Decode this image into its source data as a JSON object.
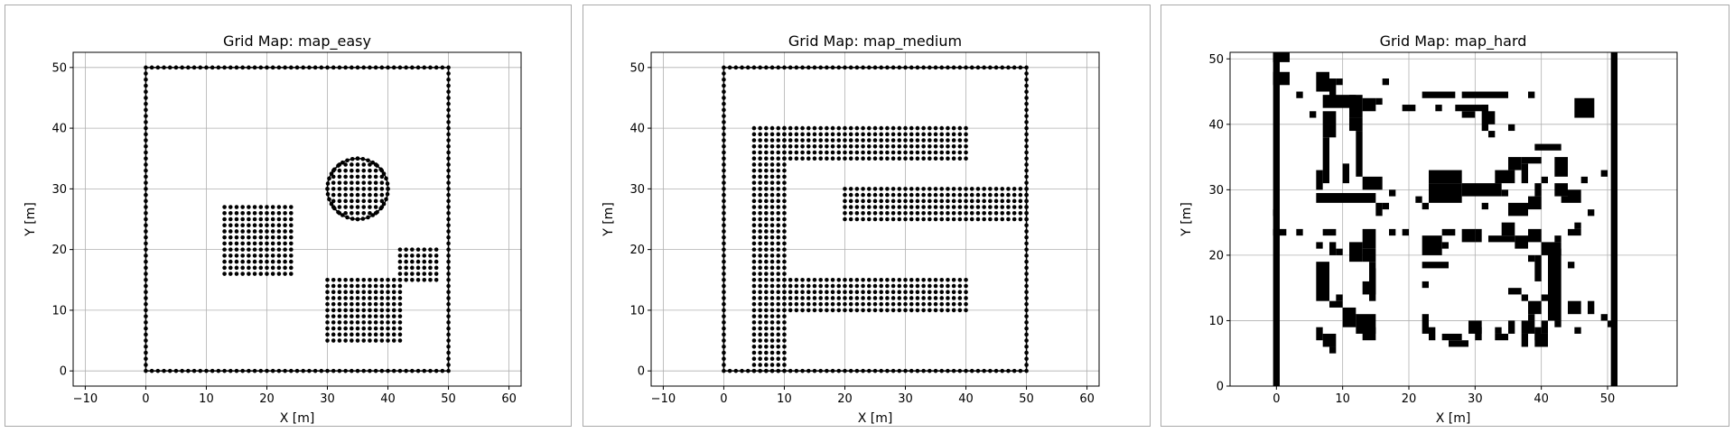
{
  "chart_data": [
    {
      "type": "scatter",
      "title": "Grid Map: map_easy",
      "xlabel": "X [m]",
      "ylabel": "Y [m]",
      "xlim": [
        -12,
        62
      ],
      "ylim": [
        -2.5,
        52.5
      ],
      "xticks": [
        -10,
        0,
        10,
        20,
        30,
        40,
        50,
        60
      ],
      "yticks": [
        0,
        10,
        20,
        30,
        40,
        50
      ],
      "grid": true,
      "marker_color": "#000000",
      "obstacles": [
        {
          "kind": "rect_outline",
          "x0": 0,
          "x1": 50,
          "y0": 0,
          "y1": 50
        },
        {
          "kind": "rect_filled",
          "x0": 13,
          "x1": 24,
          "y0": 16,
          "y1": 27
        },
        {
          "kind": "rect_filled",
          "x0": 30,
          "x1": 42,
          "y0": 5,
          "y1": 15
        },
        {
          "kind": "rect_filled",
          "x0": 42,
          "x1": 48,
          "y0": 15,
          "y1": 20
        },
        {
          "kind": "circle_filled",
          "cx": 35,
          "cy": 30,
          "r": 5
        }
      ]
    },
    {
      "type": "scatter",
      "title": "Grid Map: map_medium",
      "xlabel": "X [m]",
      "ylabel": "Y [m]",
      "xlim": [
        -12,
        62
      ],
      "ylim": [
        -2.5,
        52.5
      ],
      "xticks": [
        -10,
        0,
        10,
        20,
        30,
        40,
        50,
        60
      ],
      "yticks": [
        0,
        10,
        20,
        30,
        40,
        50
      ],
      "grid": true,
      "marker_color": "#000000",
      "obstacles": [
        {
          "kind": "rect_outline",
          "x0": 0,
          "x1": 50,
          "y0": 0,
          "y1": 50
        },
        {
          "kind": "rect_filled",
          "x0": 5,
          "x1": 10,
          "y0": 0,
          "y1": 40
        },
        {
          "kind": "rect_filled",
          "x0": 10,
          "x1": 40,
          "y0": 35,
          "y1": 40
        },
        {
          "kind": "rect_filled",
          "x0": 10,
          "x1": 40,
          "y0": 10,
          "y1": 15
        },
        {
          "kind": "rect_filled",
          "x0": 20,
          "x1": 50,
          "y0": 25,
          "y1": 30
        }
      ]
    },
    {
      "type": "heatmap",
      "title": "Grid Map: map_hard",
      "xlabel": "X [m]",
      "ylabel": "Y [m]",
      "xlim": [
        -7,
        60.5
      ],
      "ylim": [
        0,
        51
      ],
      "xticks": [
        0,
        10,
        20,
        30,
        40,
        50
      ],
      "yticks": [
        0,
        10,
        20,
        30,
        40,
        50
      ],
      "grid": true,
      "fill_color": "#000000",
      "cells": [
        [
          -0.5,
          0.5,
          -0.5,
          51
        ],
        [
          50.5,
          51.5,
          -0.5,
          51
        ],
        [
          -0.5,
          2,
          49.5,
          51
        ],
        [
          -0.5,
          2,
          46,
          48
        ],
        [
          6,
          8,
          45,
          48
        ],
        [
          8,
          9,
          44,
          47
        ],
        [
          9,
          10,
          46,
          46
        ],
        [
          7,
          12,
          42.5,
          44.5
        ],
        [
          11,
          13,
          41,
          44.5
        ],
        [
          13,
          15,
          42,
          44
        ],
        [
          7,
          9,
          38,
          42
        ],
        [
          7,
          8,
          31,
          38
        ],
        [
          11,
          13,
          39,
          41
        ],
        [
          12,
          13,
          32,
          39
        ],
        [
          10,
          11,
          31,
          34
        ],
        [
          6,
          7,
          30,
          33
        ],
        [
          3,
          4,
          44,
          45
        ],
        [
          5,
          6,
          41,
          42
        ],
        [
          6,
          15,
          28,
          29.5
        ],
        [
          13,
          16,
          30,
          32
        ],
        [
          15,
          16,
          26,
          28
        ],
        [
          16,
          17,
          27,
          28
        ],
        [
          16,
          17,
          46,
          47
        ],
        [
          15,
          16,
          43,
          44
        ],
        [
          17,
          18,
          29,
          30
        ],
        [
          21,
          22,
          28,
          29
        ],
        [
          22,
          23,
          27,
          28
        ],
        [
          23,
          28,
          31,
          33
        ],
        [
          23,
          28,
          28,
          31
        ],
        [
          26,
          27,
          44,
          45
        ],
        [
          22,
          26,
          44,
          45
        ],
        [
          19,
          21,
          42,
          43
        ],
        [
          28,
          35,
          44,
          45
        ],
        [
          31,
          32,
          39,
          43
        ],
        [
          32,
          33,
          40,
          42
        ],
        [
          24,
          25,
          42,
          43
        ],
        [
          27,
          32,
          42,
          43
        ],
        [
          28,
          30,
          41,
          42
        ],
        [
          32,
          33,
          38,
          39
        ],
        [
          35,
          36,
          39,
          40
        ],
        [
          38,
          39,
          44,
          45
        ],
        [
          33,
          36,
          31,
          33
        ],
        [
          28,
          34,
          29,
          31
        ],
        [
          31,
          32,
          27,
          28
        ],
        [
          34,
          35,
          29,
          30
        ],
        [
          35,
          37,
          33,
          35
        ],
        [
          37,
          40,
          34,
          35
        ],
        [
          37,
          38,
          31,
          34
        ],
        [
          39,
          43,
          36,
          37
        ],
        [
          42,
          44,
          32,
          35
        ],
        [
          40,
          41,
          31,
          32
        ],
        [
          43,
          44,
          33,
          34
        ],
        [
          45,
          48,
          41,
          44
        ],
        [
          46,
          47,
          31,
          32
        ],
        [
          49,
          50,
          32,
          33
        ],
        [
          47,
          48,
          26,
          27
        ],
        [
          44,
          46,
          28,
          30
        ],
        [
          42,
          44,
          29,
          31
        ],
        [
          35,
          38,
          26,
          28
        ],
        [
          38,
          40,
          27,
          29
        ],
        [
          39,
          40,
          29,
          31
        ],
        [
          43,
          44,
          28,
          29
        ],
        [
          -0.5,
          0.5,
          26,
          27
        ],
        [
          -0.5,
          1.5,
          23,
          24
        ],
        [
          3,
          4,
          23,
          24
        ],
        [
          7,
          9,
          23,
          24
        ],
        [
          8,
          9,
          20,
          22
        ],
        [
          6,
          7,
          21,
          22
        ],
        [
          9,
          10,
          20,
          21
        ],
        [
          11,
          13,
          19,
          22
        ],
        [
          13,
          15,
          21,
          24
        ],
        [
          13,
          15,
          19,
          21
        ],
        [
          14,
          15,
          13,
          19
        ],
        [
          13,
          15,
          14,
          16
        ],
        [
          14,
          15,
          16,
          18
        ],
        [
          6,
          8,
          13,
          19
        ],
        [
          7,
          8,
          15,
          17
        ],
        [
          9,
          10,
          13,
          14
        ],
        [
          8,
          10,
          12,
          13
        ],
        [
          10,
          12,
          9,
          12
        ],
        [
          12,
          15,
          8,
          11
        ],
        [
          13,
          15,
          7,
          9
        ],
        [
          6,
          7,
          7,
          9
        ],
        [
          7,
          9,
          6,
          8
        ],
        [
          8,
          9,
          5,
          6
        ],
        [
          17,
          18,
          23,
          24
        ],
        [
          19,
          20,
          23,
          24
        ],
        [
          22,
          25,
          20,
          23
        ],
        [
          25,
          26,
          21,
          22
        ],
        [
          25,
          27,
          23,
          24
        ],
        [
          28,
          30,
          22,
          24
        ],
        [
          30,
          31,
          22,
          24
        ],
        [
          32,
          36,
          22,
          23
        ],
        [
          36,
          38,
          21,
          23
        ],
        [
          34,
          36,
          23,
          25
        ],
        [
          38,
          40,
          22,
          24
        ],
        [
          40,
          43,
          20,
          22
        ],
        [
          42,
          43,
          22,
          23
        ],
        [
          41,
          43,
          10,
          21
        ],
        [
          42,
          43,
          9,
          10
        ],
        [
          44,
          45,
          18,
          19
        ],
        [
          44,
          46,
          23,
          24
        ],
        [
          45,
          46,
          24,
          25
        ],
        [
          23,
          26,
          18,
          19
        ],
        [
          22,
          23,
          18,
          19
        ],
        [
          22,
          23,
          15,
          16
        ],
        [
          22,
          23,
          8,
          11
        ],
        [
          23,
          24,
          7,
          9
        ],
        [
          25,
          28,
          7,
          8
        ],
        [
          26,
          29,
          6,
          7
        ],
        [
          30,
          31,
          7,
          9
        ],
        [
          29,
          31,
          8,
          10
        ],
        [
          33,
          35,
          7,
          8
        ],
        [
          33,
          34,
          8,
          9
        ],
        [
          35,
          36,
          8,
          10
        ],
        [
          37,
          39,
          8,
          10
        ],
        [
          38,
          39,
          10,
          11
        ],
        [
          37,
          38,
          6,
          8
        ],
        [
          39,
          40,
          7,
          9
        ],
        [
          39,
          41,
          6,
          8
        ],
        [
          40,
          41,
          8,
          10
        ],
        [
          38,
          40,
          11,
          13
        ],
        [
          40,
          41,
          13,
          14
        ],
        [
          35,
          37,
          14,
          15
        ],
        [
          38,
          39,
          19,
          20
        ],
        [
          39,
          40,
          16,
          20
        ],
        [
          37,
          38,
          13,
          14
        ],
        [
          44,
          46,
          11,
          13
        ],
        [
          47,
          48,
          11,
          13
        ],
        [
          50,
          51,
          9,
          10
        ],
        [
          49,
          50,
          10,
          11
        ],
        [
          45,
          46,
          8,
          9
        ]
      ]
    }
  ]
}
